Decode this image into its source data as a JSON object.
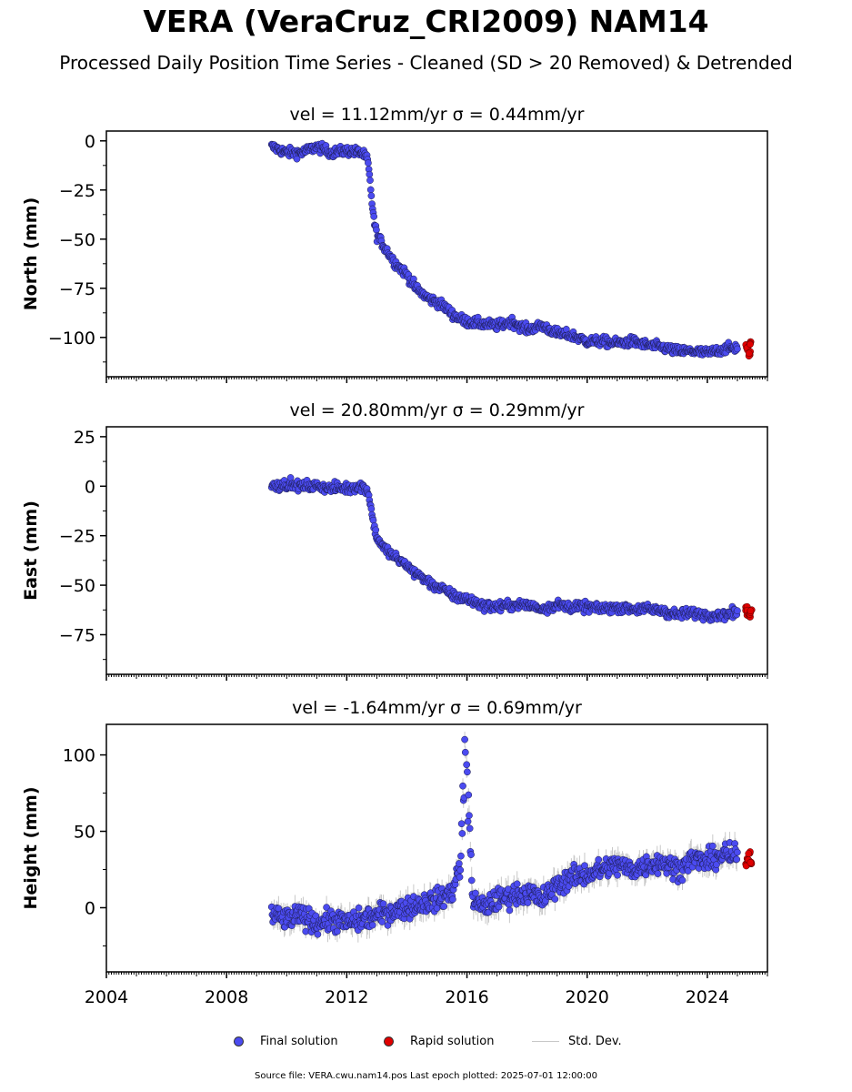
{
  "figure": {
    "title": "VERA (VeraCruz_CRI2009) NAM14",
    "subtitle": "Processed Daily Position Time Series - Cleaned (SD > 20 Removed) & Detrended",
    "source": "Source file: VERA.cwu.nam14.pos  Last epoch plotted: 2025-07-01 12:00:00"
  },
  "legend": {
    "final": "Final solution",
    "rapid": "Rapid solution",
    "std": "Std. Dev."
  },
  "colors": {
    "final": "#4b4bf0",
    "rapid": "#e00000",
    "std": "#c8c8c8",
    "edge": "#1a1a4a"
  },
  "chart_data": [
    {
      "type": "scatter",
      "title": "vel = 11.12mm/yr   σ = 0.44mm/yr",
      "ylabel": "North (mm)",
      "xlim": [
        2004,
        2026
      ],
      "ylim": [
        -120,
        5
      ],
      "yticks": [
        0,
        -25,
        -50,
        -75,
        -100
      ],
      "xticks": [
        2004,
        2008,
        2012,
        2016,
        2020,
        2024
      ],
      "grid": false,
      "series": [
        {
          "name": "Final solution",
          "x": [
            2009.5,
            2010.0,
            2010.5,
            2011.0,
            2011.5,
            2012.0,
            2012.5,
            2012.7,
            2012.8,
            2012.9,
            2013.0,
            2013.3,
            2013.6,
            2014.0,
            2014.3,
            2014.7,
            2015.0,
            2015.3,
            2015.5,
            2015.7,
            2016.0,
            2016.5,
            2017.0,
            2017.5,
            2018.0,
            2018.5,
            2019.0,
            2019.5,
            2020.0,
            2020.5,
            2021.0,
            2021.5,
            2022.0,
            2022.5,
            2023.0,
            2023.5,
            2024.0,
            2024.5,
            2025.0
          ],
          "y": [
            -3,
            -6,
            -6,
            -3,
            -6,
            -5,
            -6,
            -10,
            -25,
            -40,
            -48,
            -55,
            -62,
            -68,
            -75,
            -80,
            -82,
            -85,
            -88,
            -90,
            -92,
            -93,
            -94,
            -92,
            -96,
            -94,
            -98,
            -99,
            -102,
            -102,
            -103,
            -102,
            -104,
            -105,
            -107,
            -107,
            -108,
            -106,
            -105
          ]
        },
        {
          "name": "Rapid solution",
          "x": [
            2025.3,
            2025.35,
            2025.4,
            2025.45
          ],
          "y": [
            -104,
            -106,
            -108,
            -103
          ]
        }
      ]
    },
    {
      "type": "scatter",
      "title": "vel = 20.80mm/yr   σ = 0.29mm/yr",
      "ylabel": "East (mm)",
      "xlim": [
        2004,
        2026
      ],
      "ylim": [
        -95,
        30
      ],
      "yticks": [
        25,
        0,
        -25,
        -50,
        -75
      ],
      "xticks": [
        2004,
        2008,
        2012,
        2016,
        2020,
        2024
      ],
      "grid": false,
      "series": [
        {
          "name": "Final solution",
          "x": [
            2009.5,
            2010.0,
            2010.5,
            2011.0,
            2011.5,
            2012.0,
            2012.5,
            2012.7,
            2012.8,
            2012.9,
            2013.0,
            2013.3,
            2013.6,
            2014.0,
            2014.3,
            2014.7,
            2015.0,
            2015.3,
            2015.5,
            2015.7,
            2016.0,
            2016.5,
            2017.0,
            2017.5,
            2018.0,
            2018.5,
            2019.0,
            2019.5,
            2020.0,
            2020.5,
            2021.0,
            2021.5,
            2022.0,
            2022.5,
            2023.0,
            2023.5,
            2024.0,
            2024.5,
            2025.0
          ],
          "y": [
            0,
            1,
            0,
            0,
            -1,
            -1,
            0,
            -2,
            -10,
            -20,
            -26,
            -32,
            -36,
            -40,
            -44,
            -48,
            -51,
            -53,
            -55,
            -56,
            -57,
            -60,
            -61,
            -60,
            -60,
            -62,
            -60,
            -61,
            -61,
            -62,
            -61,
            -62,
            -62,
            -63,
            -65,
            -64,
            -65,
            -65,
            -64
          ]
        },
        {
          "name": "Rapid solution",
          "x": [
            2025.3,
            2025.35,
            2025.4,
            2025.45
          ],
          "y": [
            -62,
            -64,
            -65,
            -63
          ]
        }
      ]
    },
    {
      "type": "scatter",
      "title": "vel = -1.64mm/yr   σ = 0.69mm/yr",
      "ylabel": "Height (mm)",
      "xlim": [
        2004,
        2026
      ],
      "ylim": [
        -42,
        120
      ],
      "yticks": [
        100,
        50,
        0
      ],
      "xticks": [
        2004,
        2008,
        2012,
        2016,
        2020,
        2024
      ],
      "grid": false,
      "series": [
        {
          "name": "Final solution",
          "x": [
            2009.5,
            2010.0,
            2010.5,
            2011.0,
            2011.5,
            2012.0,
            2012.5,
            2013.0,
            2013.5,
            2014.0,
            2014.5,
            2015.0,
            2015.5,
            2015.8,
            2015.95,
            2016.2,
            2016.5,
            2017.0,
            2017.5,
            2018.0,
            2018.5,
            2019.0,
            2019.5,
            2020.0,
            2020.5,
            2021.0,
            2021.5,
            2022.0,
            2022.5,
            2023.0,
            2023.5,
            2024.0,
            2024.5,
            2025.0
          ],
          "y": [
            -5,
            -8,
            -5,
            -10,
            -8,
            -10,
            -8,
            -5,
            -2,
            0,
            3,
            5,
            10,
            30,
            110,
            5,
            0,
            5,
            8,
            10,
            5,
            15,
            20,
            22,
            25,
            28,
            25,
            28,
            30,
            25,
            32,
            30,
            35,
            33
          ]
        },
        {
          "name": "Rapid solution",
          "x": [
            2025.3,
            2025.35,
            2025.4,
            2025.45
          ],
          "y": [
            28,
            32,
            36,
            30
          ]
        }
      ]
    }
  ]
}
